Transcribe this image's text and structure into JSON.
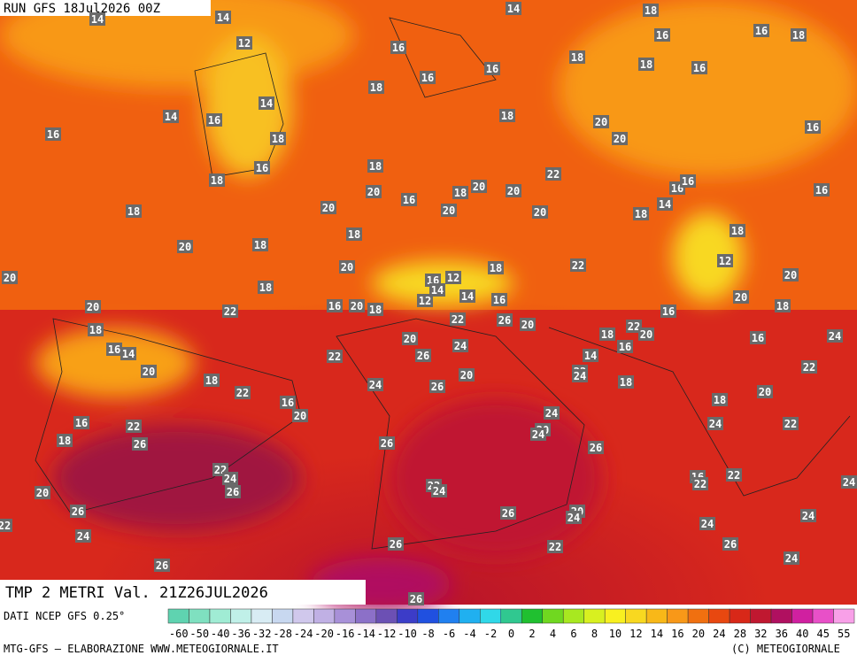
{
  "header": {
    "run": "RUN GFS 18Jul2026 00Z",
    "title": "TMP 2 METRI Val. 21Z26JUL2026"
  },
  "map_labels": [
    14,
    14,
    14,
    18,
    12,
    16,
    16,
    16,
    18,
    18,
    16,
    16,
    18,
    16,
    14,
    18,
    14,
    16,
    16,
    18,
    18,
    20,
    20,
    16,
    16,
    18,
    18,
    22,
    18,
    20,
    20,
    16,
    16,
    16,
    20,
    16,
    20,
    20,
    20,
    18,
    14,
    18,
    18,
    18,
    20,
    18,
    18,
    20,
    22,
    12,
    20,
    20,
    18,
    16,
    12,
    14,
    14,
    12,
    16,
    20,
    22,
    16,
    20,
    18,
    20,
    18,
    22,
    16,
    18,
    26,
    20,
    22,
    20,
    18,
    16,
    24,
    16,
    14,
    20,
    24,
    16,
    20,
    22,
    26,
    14,
    22,
    18,
    22,
    24,
    26,
    20,
    22,
    24,
    18,
    20,
    16,
    20,
    18,
    16,
    22,
    24,
    22,
    24,
    20,
    24,
    18,
    26,
    26,
    26,
    22,
    24,
    16,
    22,
    22,
    26,
    24,
    22,
    24,
    20,
    26,
    26,
    20,
    24,
    24,
    22,
    24,
    24,
    26,
    22,
    26,
    24,
    26,
    26
  ],
  "colorbar": {
    "ticks": [
      -60,
      -50,
      -40,
      -36,
      -32,
      -28,
      -24,
      -20,
      -16,
      -14,
      -12,
      -10,
      -8,
      -6,
      -4,
      -2,
      0,
      2,
      4,
      6,
      8,
      10,
      12,
      14,
      16,
      20,
      24,
      28,
      32,
      36,
      40,
      45,
      55
    ],
    "colors": [
      "#5fd3b0",
      "#7fe0c0",
      "#a0ecd4",
      "#c0f0e8",
      "#d8ecf4",
      "#c8d8f0",
      "#d0c8ec",
      "#c0b0e4",
      "#a890d8",
      "#8c70c8",
      "#6c50b4",
      "#3c3cc8",
      "#2050e0",
      "#2080f0",
      "#20b0f0",
      "#30d8e8",
      "#30c890",
      "#20c030",
      "#70d820",
      "#a8e820",
      "#d8f020",
      "#f8f020",
      "#f8d820",
      "#f8b818",
      "#f89818",
      "#f07010",
      "#e84810",
      "#d82818",
      "#c01830",
      "#b01060",
      "#d020a0",
      "#e850c8",
      "#f8a0e8"
    ]
  },
  "footer": {
    "source": "DATI NCEP GFS 0.25°",
    "credits": "MTG-GFS — ELABORAZIONE WWW.METEOGIORNALE.IT",
    "copyright": "(C) METEOGIORNALE"
  }
}
